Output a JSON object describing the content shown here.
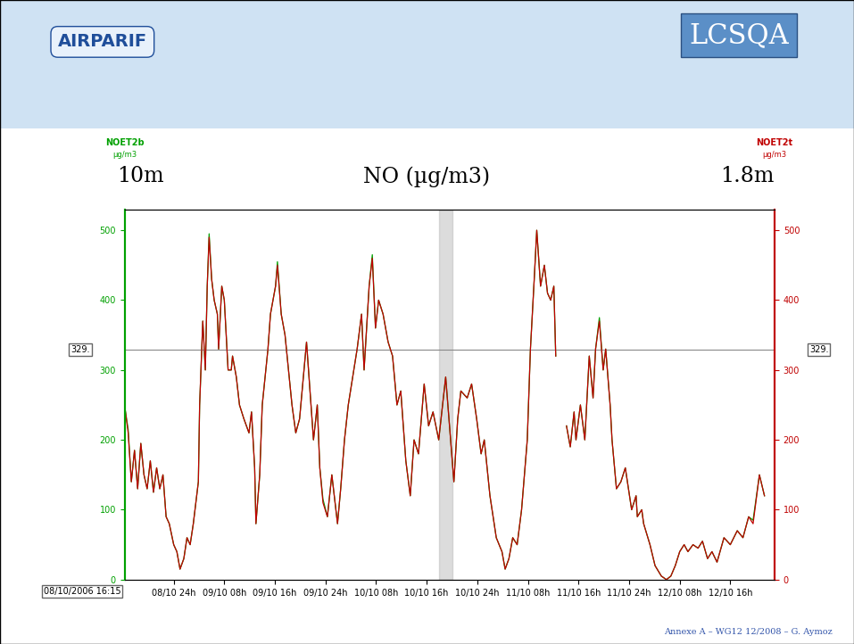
{
  "chart_data": {
    "type": "line",
    "title": "NO (µg/m3)",
    "annotations": [
      "10m",
      "1.8m"
    ],
    "header": [
      "AIRPARIF",
      "LCSQA"
    ],
    "footer": "Annexe A – WG12 12/2008 – G. Aymoz",
    "start_label": "08/10/2006 16:15",
    "ylabel": "µg/m3",
    "y2label": "µg/m3",
    "x": [
      16.3,
      16.8,
      17.3,
      17.8,
      18.3,
      18.8,
      19.3,
      19.8,
      20.3,
      20.8,
      21.3,
      21.8,
      22.3,
      22.8,
      23.3,
      24.0,
      24.5,
      25.0,
      25.6,
      26.1,
      26.6,
      27.1,
      27.9,
      28.1,
      28.6,
      29.0,
      29.3,
      29.6,
      30.0,
      30.4,
      30.9,
      31.1,
      31.6,
      32.0,
      32.6,
      33.1,
      33.3,
      33.9,
      34.4,
      35.1,
      35.9,
      36.3,
      36.8,
      37.0,
      37.6,
      38.0,
      38.9,
      39.3,
      40.1,
      40.4,
      41.0,
      41.6,
      42.7,
      43.3,
      43.9,
      44.6,
      45.0,
      45.7,
      46.1,
      46.7,
      47.1,
      47.6,
      48.3,
      49.0,
      49.9,
      50.4,
      51.0,
      51.6,
      53.0,
      53.7,
      54.1,
      54.9,
      55.4,
      55.9,
      56.4,
      57.1,
      57.9,
      58.6,
      59.3,
      59.9,
      60.7,
      61.4,
      62.0,
      62.7,
      63.6,
      64.3,
      65.0,
      65.9,
      67.0,
      68.3,
      68.9,
      69.4,
      70.4,
      71.1,
      71.9,
      72.6,
      73.1,
      74.0,
      75.0,
      75.9,
      76.4,
      77.0,
      77.6,
      78.3,
      79.0,
      79.9,
      80.4,
      81.0,
      81.4,
      82.0,
      82.6,
      83.1,
      83.6,
      84.1,
      84.4,
      85.2,
      86.1,
      86.7,
      87.3,
      87.6,
      88.3,
      89.0,
      89.7,
      90.3,
      90.7,
      91.3,
      91.9,
      92.3,
      93.0,
      93.3,
      94.0,
      94.7,
      95.4,
      96.4,
      97.1,
      97.3,
      98.0,
      98.3,
      99.3,
      100.1,
      101.1,
      101.9,
      102.6,
      103.3,
      104.0,
      104.7,
      105.3,
      106.1,
      106.9,
      107.6,
      108.4,
      109.1,
      109.9,
      111.0,
      112.0,
      113.1,
      114.0,
      114.9,
      115.6,
      116.6,
      117.4
    ],
    "series": [
      {
        "name": "NOET2b",
        "color": "#00a000",
        "values": [
          245,
          215,
          140,
          185,
          130,
          195,
          150,
          130,
          170,
          125,
          160,
          130,
          150,
          90,
          80,
          50,
          40,
          15,
          30,
          60,
          50,
          80,
          140,
          250,
          370,
          300,
          420,
          495,
          430,
          400,
          380,
          330,
          420,
          400,
          300,
          300,
          320,
          290,
          250,
          230,
          210,
          240,
          160,
          80,
          150,
          250,
          330,
          380,
          420,
          455,
          380,
          350,
          250,
          210,
          230,
          300,
          340,
          250,
          200,
          250,
          160,
          115,
          90,
          150,
          80,
          130,
          200,
          250,
          330,
          380,
          300,
          420,
          465,
          360,
          400,
          380,
          340,
          320,
          250,
          270,
          170,
          120,
          200,
          180,
          280,
          220,
          240,
          200,
          290,
          140,
          230,
          270,
          260,
          280,
          230,
          180,
          200,
          120,
          60,
          40,
          15,
          30,
          60,
          50,
          100,
          200,
          330,
          430,
          500,
          420,
          450,
          410,
          400,
          420,
          320,
          null,
          220,
          190,
          240,
          200,
          250,
          200,
          320,
          260,
          330,
          375,
          300,
          330,
          250,
          200,
          130,
          140,
          160,
          100,
          120,
          90,
          100,
          80,
          50,
          20,
          5,
          0,
          5,
          20,
          40,
          50,
          40,
          50,
          45,
          55,
          30,
          40,
          25,
          60,
          50,
          70,
          60,
          90,
          85,
          150,
          120
        ]
      },
      {
        "name": "NOET2t",
        "color": "#c00000",
        "axis": "y2",
        "values": [
          245,
          210,
          140,
          185,
          130,
          195,
          150,
          130,
          170,
          125,
          160,
          130,
          150,
          90,
          80,
          50,
          40,
          15,
          30,
          60,
          50,
          80,
          140,
          250,
          370,
          300,
          420,
          490,
          430,
          400,
          380,
          330,
          420,
          400,
          300,
          300,
          320,
          290,
          250,
          230,
          210,
          240,
          160,
          80,
          150,
          250,
          330,
          380,
          420,
          450,
          380,
          350,
          250,
          210,
          230,
          300,
          340,
          250,
          200,
          250,
          160,
          110,
          90,
          150,
          80,
          130,
          200,
          250,
          330,
          380,
          300,
          420,
          460,
          360,
          400,
          380,
          340,
          320,
          250,
          270,
          170,
          120,
          200,
          180,
          280,
          220,
          240,
          200,
          290,
          140,
          230,
          270,
          260,
          280,
          230,
          180,
          200,
          120,
          60,
          40,
          15,
          30,
          60,
          50,
          100,
          200,
          330,
          430,
          500,
          420,
          450,
          410,
          400,
          420,
          320,
          null,
          220,
          190,
          240,
          200,
          250,
          200,
          320,
          260,
          330,
          370,
          300,
          330,
          250,
          200,
          130,
          140,
          160,
          100,
          120,
          90,
          100,
          80,
          50,
          20,
          5,
          0,
          5,
          20,
          40,
          50,
          40,
          50,
          45,
          55,
          30,
          40,
          25,
          60,
          50,
          70,
          60,
          90,
          80,
          150,
          120
        ]
      }
    ],
    "xlim": [
      16.25,
      119
    ],
    "xticks": [
      {
        "value": 24,
        "label": "08/10 24h"
      },
      {
        "value": 32,
        "label": "09/10 08h"
      },
      {
        "value": 40,
        "label": "09/10 16h"
      },
      {
        "value": 48,
        "label": "09/10 24h"
      },
      {
        "value": 56,
        "label": "10/10 08h"
      },
      {
        "value": 64,
        "label": "10/10 16h"
      },
      {
        "value": 72,
        "label": "10/10 24h"
      },
      {
        "value": 80,
        "label": "11/10 08h"
      },
      {
        "value": 88,
        "label": "11/10 16h"
      },
      {
        "value": 96,
        "label": "11/10 24h"
      },
      {
        "value": 104,
        "label": "12/10 08h"
      },
      {
        "value": 112,
        "label": "12/10 16h"
      }
    ],
    "ylim": [
      0,
      530
    ],
    "yticks": [
      0,
      100,
      200,
      300,
      400,
      500
    ],
    "y2lim": [
      0,
      530
    ],
    "y2ticks": [
      0,
      100,
      200,
      300,
      400,
      500
    ],
    "reference_line": {
      "value": 329,
      "label": "329."
    },
    "highlight_x": [
      66,
      68
    ],
    "grid": false
  }
}
